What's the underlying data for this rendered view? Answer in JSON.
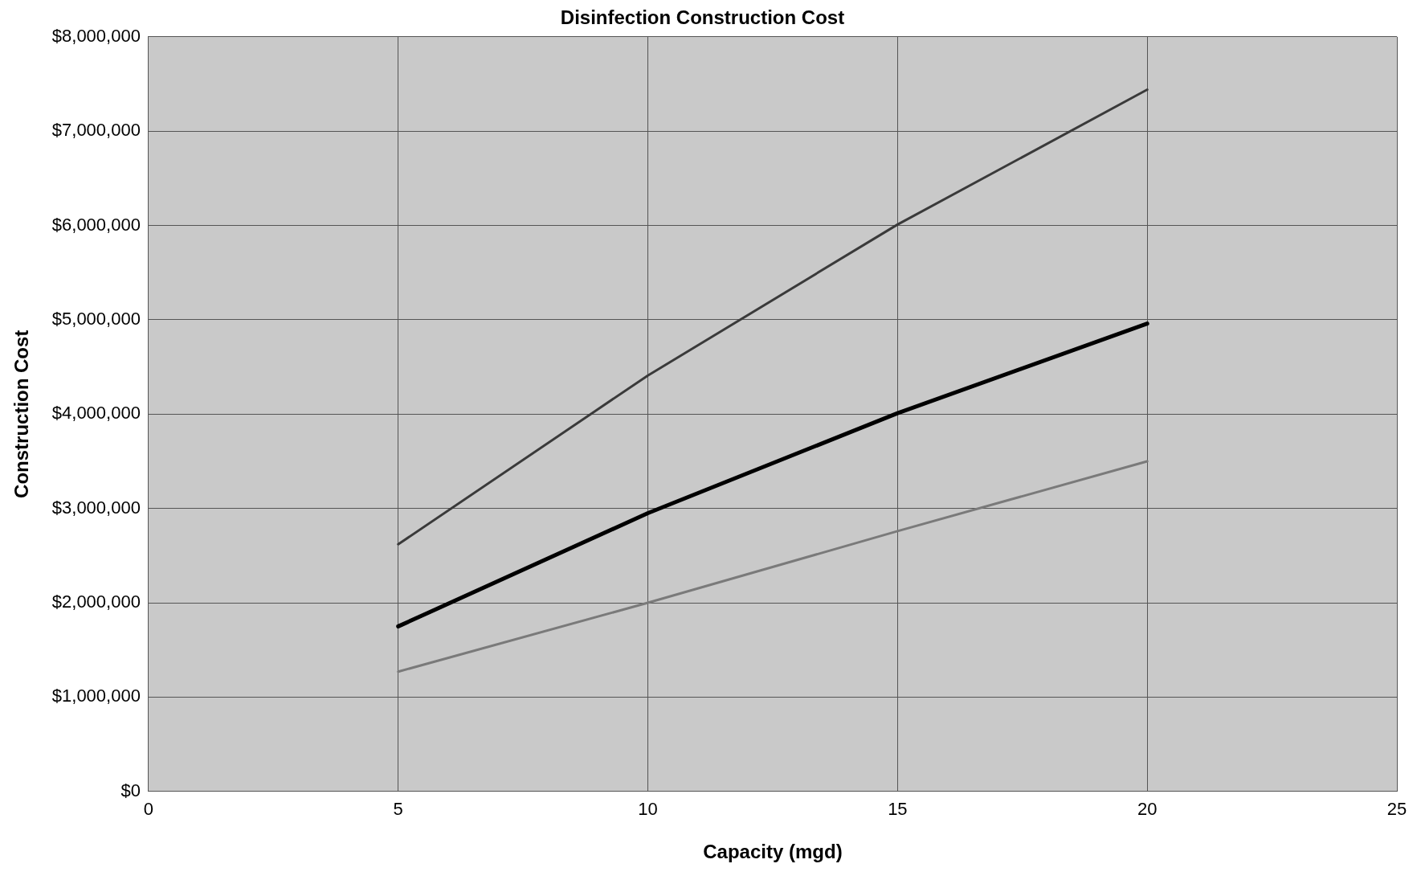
{
  "chart_data": {
    "type": "line",
    "title": "Disinfection Construction Cost",
    "xlabel": "Capacity (mgd)",
    "ylabel": "Construction Cost",
    "x": [
      5,
      10,
      15,
      20
    ],
    "series": [
      {
        "color": "#3a3a3a",
        "values": [
          2620000,
          4410000,
          6010000,
          7440000
        ]
      },
      {
        "color": "#000000",
        "values": [
          1750000,
          2950000,
          4010000,
          4960000
        ]
      },
      {
        "color": "#7a7a7a",
        "values": [
          1270000,
          2000000,
          2760000,
          3500000
        ]
      }
    ],
    "xlim": [
      0,
      25
    ],
    "xticks": [
      0,
      5,
      10,
      15,
      20,
      25
    ],
    "ylim": [
      0,
      8000000
    ],
    "yticks": [
      {
        "value": 0,
        "label": "$0"
      },
      {
        "value": 1000000,
        "label": "$1,000,000"
      },
      {
        "value": 2000000,
        "label": "$2,000,000"
      },
      {
        "value": 3000000,
        "label": "$3,000,000"
      },
      {
        "value": 4000000,
        "label": "$4,000,000"
      },
      {
        "value": 5000000,
        "label": "$5,000,000"
      },
      {
        "value": 6000000,
        "label": "$6,000,000"
      },
      {
        "value": 7000000,
        "label": "$7,000,000"
      },
      {
        "value": 8000000,
        "label": "$8,000,000"
      }
    ],
    "grid": true,
    "legend": false,
    "marker": "none",
    "line_style": "solid"
  }
}
